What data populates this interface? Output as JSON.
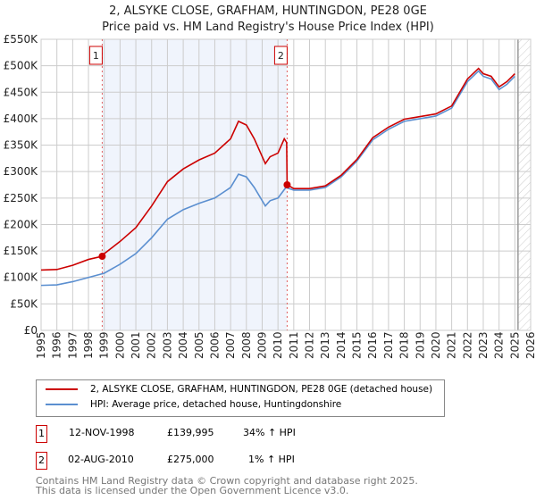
{
  "title": "2, ALSYKE CLOSE, GRAFHAM, HUNTINGDON, PE28 0GE",
  "subtitle": "Price paid vs. HM Land Registry's House Price Index (HPI)",
  "chart_data": {
    "type": "line",
    "xlim": [
      1995,
      2026
    ],
    "ylim": [
      0,
      550000
    ],
    "y_ticks": [
      {
        "v": 0,
        "label": "£0"
      },
      {
        "v": 50000,
        "label": "£50K"
      },
      {
        "v": 100000,
        "label": "£100K"
      },
      {
        "v": 150000,
        "label": "£150K"
      },
      {
        "v": 200000,
        "label": "£200K"
      },
      {
        "v": 250000,
        "label": "£250K"
      },
      {
        "v": 300000,
        "label": "£300K"
      },
      {
        "v": 350000,
        "label": "£350K"
      },
      {
        "v": 400000,
        "label": "£400K"
      },
      {
        "v": 450000,
        "label": "£450K"
      },
      {
        "v": 500000,
        "label": "£500K"
      },
      {
        "v": 550000,
        "label": "£550K"
      }
    ],
    "x_ticks": [
      "1995",
      "1996",
      "1997",
      "1998",
      "1999",
      "2000",
      "2001",
      "2002",
      "2003",
      "2004",
      "2005",
      "2006",
      "2007",
      "2008",
      "2009",
      "2010",
      "2011",
      "2012",
      "2013",
      "2014",
      "2015",
      "2016",
      "2017",
      "2018",
      "2019",
      "2020",
      "2021",
      "2022",
      "2023",
      "2024",
      "2025",
      "2026"
    ],
    "grid": true,
    "shaded_range": [
      1998.87,
      2010.58
    ],
    "hatched_from": 2025.2,
    "series": [
      {
        "name": "2, ALSYKE CLOSE, GRAFHAM, HUNTINGDON, PE28 0GE (detached house)",
        "color": "#cc0000",
        "x": [
          1995,
          1996,
          1997,
          1998,
          1998.87,
          1999,
          2000,
          2001,
          2002,
          2003,
          2004,
          2005,
          2006,
          2007,
          2007.5,
          2008,
          2008.5,
          2009.2,
          2009.5,
          2010,
          2010.4,
          2010.55,
          2010.58,
          2011,
          2012,
          2013,
          2014,
          2015,
          2016,
          2017,
          2018,
          2019,
          2020,
          2021,
          2022,
          2022.7,
          2023,
          2023.5,
          2024,
          2024.5,
          2025
        ],
        "y": [
          114000,
          115000,
          123000,
          134000,
          140000,
          145000,
          168000,
          194000,
          235000,
          281000,
          305000,
          322000,
          335000,
          362000,
          395000,
          388000,
          362000,
          315000,
          328000,
          335000,
          362000,
          355000,
          275000,
          268000,
          268000,
          273000,
          293000,
          323000,
          364000,
          384000,
          399000,
          404000,
          409000,
          424000,
          475000,
          495000,
          485000,
          480000,
          460000,
          470000,
          485000
        ]
      },
      {
        "name": "HPI: Average price, detached house, Huntingdonshire",
        "color": "#5b8fd0",
        "x": [
          1995,
          1996,
          1997,
          1998,
          1999,
          2000,
          2001,
          2002,
          2003,
          2004,
          2005,
          2006,
          2007,
          2007.5,
          2008,
          2008.5,
          2009.2,
          2009.5,
          2010,
          2010.5,
          2011,
          2012,
          2013,
          2014,
          2015,
          2016,
          2017,
          2018,
          2019,
          2020,
          2021,
          2022,
          2022.7,
          2023,
          2023.5,
          2024,
          2024.5,
          2025
        ],
        "y": [
          85000,
          86000,
          92000,
          100000,
          108000,
          125000,
          145000,
          175000,
          210000,
          228000,
          240000,
          250000,
          270000,
          295000,
          290000,
          270000,
          235000,
          245000,
          250000,
          270000,
          265000,
          265000,
          270000,
          290000,
          320000,
          360000,
          380000,
          395000,
          400000,
          405000,
          420000,
          470000,
          490000,
          480000,
          475000,
          455000,
          465000,
          480000
        ]
      }
    ],
    "sales": [
      {
        "label": "1",
        "x": 1998.87,
        "y": 139995
      },
      {
        "label": "2",
        "x": 2010.58,
        "y": 275000
      }
    ]
  },
  "legend": {
    "red": "2, ALSYKE CLOSE, GRAFHAM, HUNTINGDON, PE28 0GE (detached house)",
    "blue": "HPI: Average price, detached house, Huntingdonshire"
  },
  "transactions": [
    {
      "num": "1",
      "date": "12-NOV-1998",
      "price": "£139,995",
      "hpi": "34% ↑ HPI"
    },
    {
      "num": "2",
      "date": "02-AUG-2010",
      "price": "£275,000",
      "hpi": "1% ↑ HPI"
    }
  ],
  "footer": [
    "Contains HM Land Registry data © Crown copyright and database right 2025.",
    "This data is licensed under the Open Government Licence v3.0."
  ]
}
